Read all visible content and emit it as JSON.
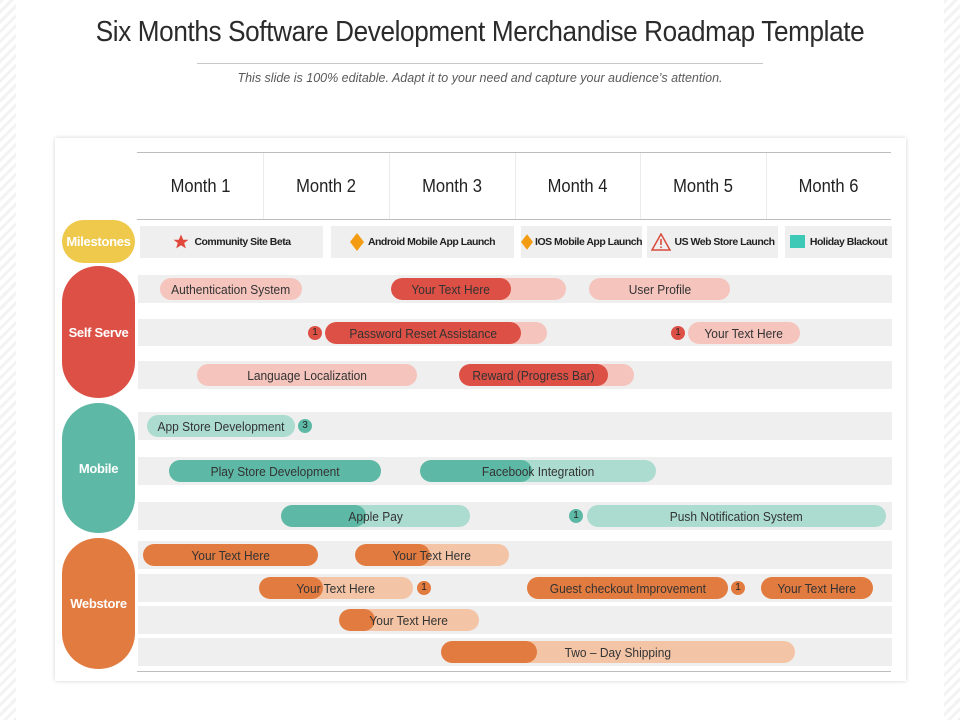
{
  "title": "Six Months Software Development Merchandise Roadmap Template",
  "subtitle": "This slide is 100% editable. Adapt it to your need and capture your audience’s  attention.",
  "months": [
    "Month 1",
    "Month 2",
    "Month 3",
    "Month 4",
    "Month 5",
    "Month 6"
  ],
  "colors": {
    "milestones": "#efc94c",
    "self_serve": "#dc5045",
    "mobile": "#5db8a5",
    "webstore": "#e27b40",
    "self_serve_light": "#f4c4bd",
    "mobile_light": "#acdccf",
    "webstore_light": "#f3c5a6",
    "milestone_star": "#e0483c",
    "milestone_diamond": "#f39c12",
    "milestone_square": "#3ec8b6"
  },
  "groups": {
    "milestones": "Milestones",
    "self_serve": "Self Serve",
    "mobile": "Mobile",
    "webstore": "Webstore"
  },
  "milestones": [
    {
      "label": "Community Site Beta",
      "icon": "star-icon"
    },
    {
      "label": "Android Mobile App Launch",
      "icon": "diamond-icon"
    },
    {
      "label": "IOS Mobile App Launch",
      "icon": "diamond-icon"
    },
    {
      "label": "US Web Store Launch",
      "icon": "warning-icon"
    },
    {
      "label": "Holiday Blackout",
      "icon": "square-icon"
    }
  ],
  "tasks": {
    "self_serve": [
      {
        "label": "Authentication System"
      },
      {
        "label": "Your Text Here"
      },
      {
        "label": "User Profile"
      },
      {
        "label": "Password Reset Assistance",
        "badge": "1"
      },
      {
        "label": "Your Text Here",
        "badge": "1"
      },
      {
        "label": "Language Localization"
      },
      {
        "label": "Reward (Progress Bar)"
      }
    ],
    "mobile": [
      {
        "label": "App Store Development",
        "badge": "3"
      },
      {
        "label": "Play Store Development"
      },
      {
        "label": "Facebook Integration"
      },
      {
        "label": "Apple Pay"
      },
      {
        "label": "Push Notification System",
        "badge": "1"
      }
    ],
    "webstore": [
      {
        "label": "Your Text Here"
      },
      {
        "label": "Your Text Here"
      },
      {
        "label": "Your Text Here",
        "badge": "1"
      },
      {
        "label": "Guest checkout Improvement",
        "badge": "1"
      },
      {
        "label": "Your Text Here"
      },
      {
        "label": "Your Text Here"
      },
      {
        "label": "Two – Day Shipping"
      }
    ]
  }
}
